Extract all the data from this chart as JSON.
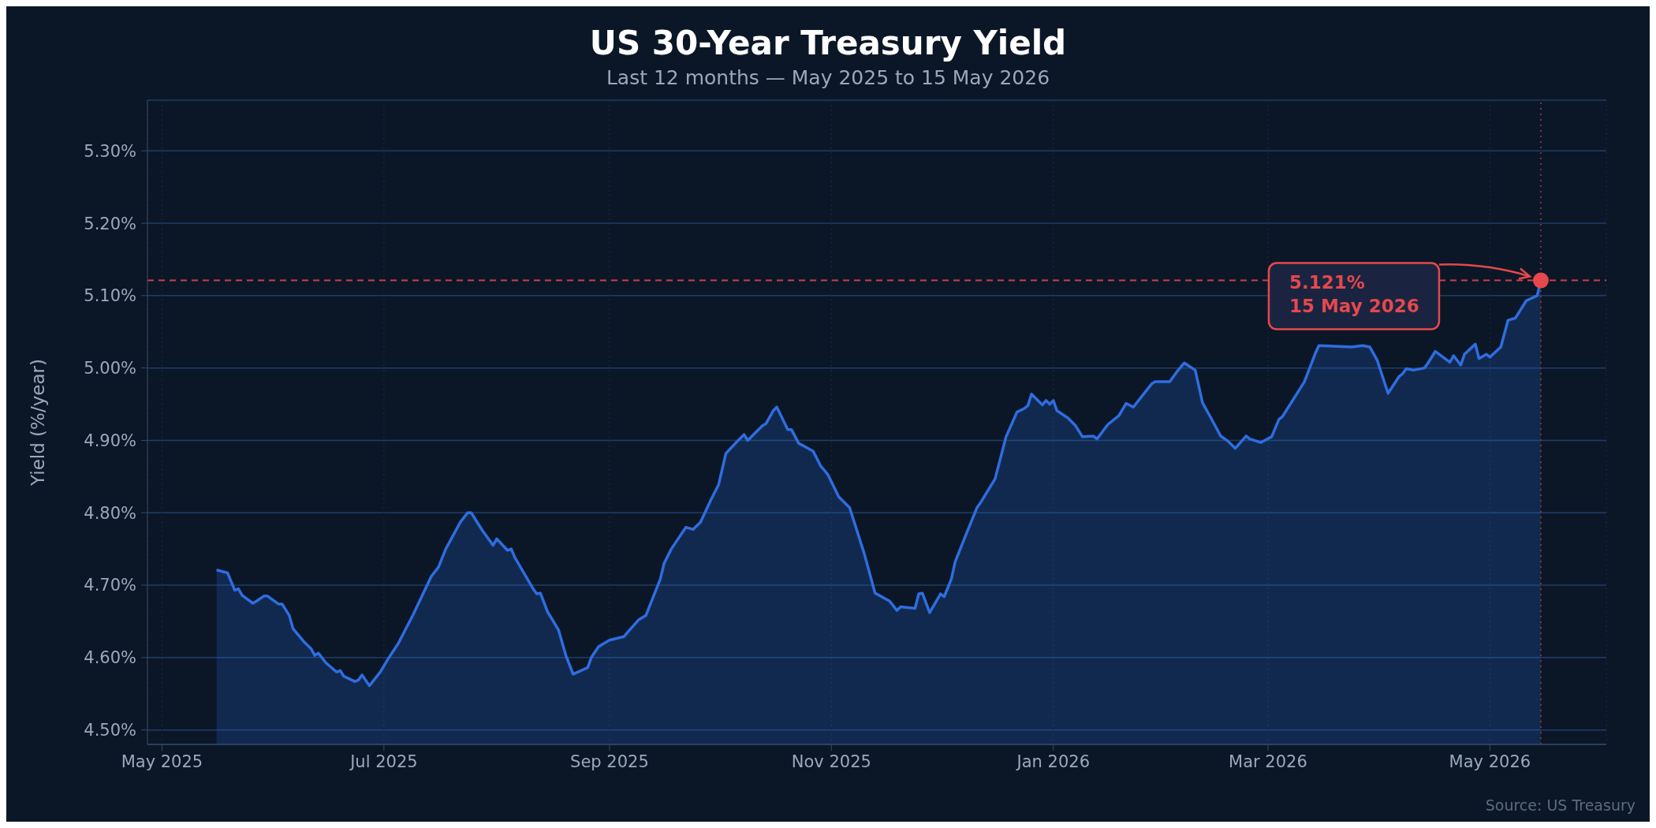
{
  "chart_data": {
    "type": "area",
    "title": "US 30-Year Treasury Yield",
    "subtitle": "Last 12 months — May 2025 to 15 May 2026",
    "ylabel": "Yield (%/year)",
    "x": [
      "2025-05-16",
      "2025-05-19",
      "2025-05-21",
      "2025-05-22",
      "2025-05-23",
      "2025-05-26",
      "2025-05-27",
      "2025-05-29",
      "2025-05-30",
      "2025-06-02",
      "2025-06-03",
      "2025-06-05",
      "2025-06-06",
      "2025-06-09",
      "2025-06-11",
      "2025-06-12",
      "2025-06-13",
      "2025-06-15",
      "2025-06-18",
      "2025-06-19",
      "2025-06-20",
      "2025-06-23",
      "2025-06-24",
      "2025-06-25",
      "2025-06-27",
      "2025-06-30",
      "2025-07-02",
      "2025-07-05",
      "2025-07-09",
      "2025-07-14",
      "2025-07-16",
      "2025-07-18",
      "2025-07-22",
      "2025-07-24",
      "2025-07-25",
      "2025-07-28",
      "2025-07-31",
      "2025-08-01",
      "2025-08-04",
      "2025-08-05",
      "2025-08-06",
      "2025-08-08",
      "2025-08-11",
      "2025-08-12",
      "2025-08-13",
      "2025-08-15",
      "2025-08-18",
      "2025-08-20",
      "2025-08-22",
      "2025-08-26",
      "2025-08-27",
      "2025-08-29",
      "2025-09-01",
      "2025-09-05",
      "2025-09-06",
      "2025-09-09",
      "2025-09-11",
      "2025-09-15",
      "2025-09-16",
      "2025-09-18",
      "2025-09-22",
      "2025-09-24",
      "2025-09-26",
      "2025-09-29",
      "2025-10-01",
      "2025-10-03",
      "2025-10-06",
      "2025-10-08",
      "2025-10-09",
      "2025-10-13",
      "2025-10-14",
      "2025-10-16",
      "2025-10-17",
      "2025-10-20",
      "2025-10-21",
      "2025-10-23",
      "2025-10-27",
      "2025-10-29",
      "2025-10-31",
      "2025-11-03",
      "2025-11-06",
      "2025-11-10",
      "2025-11-13",
      "2025-11-17",
      "2025-11-19",
      "2025-11-20",
      "2025-11-24",
      "2025-11-25",
      "2025-11-26",
      "2025-11-28",
      "2025-12-01",
      "2025-12-02",
      "2025-12-04",
      "2025-12-05",
      "2025-12-08",
      "2025-12-11",
      "2025-12-12",
      "2025-12-16",
      "2025-12-19",
      "2025-12-22",
      "2025-12-24",
      "2025-12-25",
      "2025-12-26",
      "2025-12-29",
      "2025-12-30",
      "2025-12-31",
      "2026-01-01",
      "2026-01-02",
      "2026-01-05",
      "2026-01-07",
      "2026-01-09",
      "2026-01-12",
      "2026-01-13",
      "2026-01-16",
      "2026-01-19",
      "2026-01-21",
      "2026-01-23",
      "2026-01-28",
      "2026-01-29",
      "2026-02-02",
      "2026-02-04",
      "2026-02-06",
      "2026-02-09",
      "2026-02-11",
      "2026-02-13",
      "2026-02-16",
      "2026-02-18",
      "2026-02-20",
      "2026-02-23",
      "2026-02-24",
      "2026-02-27",
      "2026-03-02",
      "2026-03-04",
      "2026-03-05",
      "2026-03-11",
      "2026-03-14",
      "2026-03-15",
      "2026-03-24",
      "2026-03-27",
      "2026-03-29",
      "2026-03-31",
      "2026-04-03",
      "2026-04-06",
      "2026-04-07",
      "2026-04-08",
      "2026-04-10",
      "2026-04-13",
      "2026-04-14",
      "2026-04-16",
      "2026-04-20",
      "2026-04-21",
      "2026-04-23",
      "2026-04-24",
      "2026-04-27",
      "2026-04-28",
      "2026-04-30",
      "2026-05-01",
      "2026-05-04",
      "2026-05-06",
      "2026-05-08",
      "2026-05-11",
      "2026-05-14",
      "2026-05-15"
    ],
    "series": [
      {
        "color": "#2f6de0",
        "values": [
          4.721,
          4.717,
          4.693,
          4.695,
          4.686,
          4.675,
          4.678,
          4.685,
          4.685,
          4.674,
          4.674,
          4.658,
          4.64,
          4.622,
          4.612,
          4.603,
          4.606,
          4.593,
          4.58,
          4.582,
          4.574,
          4.567,
          4.569,
          4.576,
          4.561,
          4.58,
          4.597,
          4.62,
          4.659,
          4.712,
          4.725,
          4.75,
          4.787,
          4.8,
          4.8,
          4.776,
          4.755,
          4.764,
          4.748,
          4.75,
          4.738,
          4.721,
          4.695,
          4.688,
          4.689,
          4.663,
          4.638,
          4.603,
          4.577,
          4.586,
          4.6,
          4.615,
          4.624,
          4.629,
          4.635,
          4.652,
          4.658,
          4.709,
          4.73,
          4.75,
          4.78,
          4.777,
          4.787,
          4.819,
          4.839,
          4.882,
          4.898,
          4.908,
          4.9,
          4.92,
          4.923,
          4.941,
          4.946,
          4.915,
          4.915,
          4.896,
          4.885,
          4.865,
          4.853,
          4.822,
          4.807,
          4.744,
          4.689,
          4.678,
          4.665,
          4.67,
          4.668,
          4.688,
          4.689,
          4.662,
          4.688,
          4.684,
          4.709,
          4.732,
          4.77,
          4.807,
          4.814,
          4.847,
          4.905,
          4.939,
          4.944,
          4.948,
          4.964,
          4.949,
          4.955,
          4.95,
          4.955,
          4.941,
          4.931,
          4.921,
          4.905,
          4.906,
          4.902,
          4.922,
          4.934,
          4.951,
          4.946,
          4.978,
          4.981,
          4.981,
          4.995,
          5.007,
          4.997,
          4.952,
          4.934,
          4.906,
          4.899,
          4.889,
          4.906,
          4.902,
          4.897,
          4.905,
          4.929,
          4.933,
          4.981,
          5.02,
          5.031,
          5.029,
          5.031,
          5.029,
          5.011,
          4.965,
          4.988,
          4.992,
          4.999,
          4.997,
          5.0,
          5.007,
          5.023,
          5.008,
          5.017,
          5.004,
          5.019,
          5.033,
          5.013,
          5.019,
          5.015,
          5.029,
          5.066,
          5.069,
          5.093,
          5.1,
          5.121
        ]
      }
    ],
    "xlim": [
      "2025-04-27",
      "2026-06-02"
    ],
    "xticks": [
      {
        "value": "2025-05-01",
        "label": "May 2025"
      },
      {
        "value": "2025-07-01",
        "label": "Jul 2025"
      },
      {
        "value": "2025-09-01",
        "label": "Sep 2025"
      },
      {
        "value": "2025-11-01",
        "label": "Nov 2025"
      },
      {
        "value": "2026-01-01",
        "label": "Jan 2026"
      },
      {
        "value": "2026-03-01",
        "label": "Mar 2026"
      },
      {
        "value": "2026-05-01",
        "label": "May 2026"
      }
    ],
    "ylim": [
      4.48,
      5.37
    ],
    "yticks": [
      {
        "value": 4.5,
        "label": "4.50%"
      },
      {
        "value": 4.6,
        "label": "4.60%"
      },
      {
        "value": 4.7,
        "label": "4.70%"
      },
      {
        "value": 4.8,
        "label": "4.80%"
      },
      {
        "value": 4.9,
        "label": "4.90%"
      },
      {
        "value": 5.0,
        "label": "5.00%"
      },
      {
        "value": 5.1,
        "label": "5.10%"
      },
      {
        "value": 5.2,
        "label": "5.20%"
      },
      {
        "value": 5.3,
        "label": "5.30%"
      }
    ],
    "grid": true,
    "ref_lines": [
      {
        "axis": "y",
        "value": 5.121,
        "color": "#c9414a",
        "line_style": "dashed"
      },
      {
        "axis": "x",
        "value": "2026-05-15",
        "color": "#7a3440",
        "line_style": "dotted"
      }
    ],
    "annotations": [
      "5.121%\n15 May 2026",
      "Source: US Treasury"
    ]
  }
}
